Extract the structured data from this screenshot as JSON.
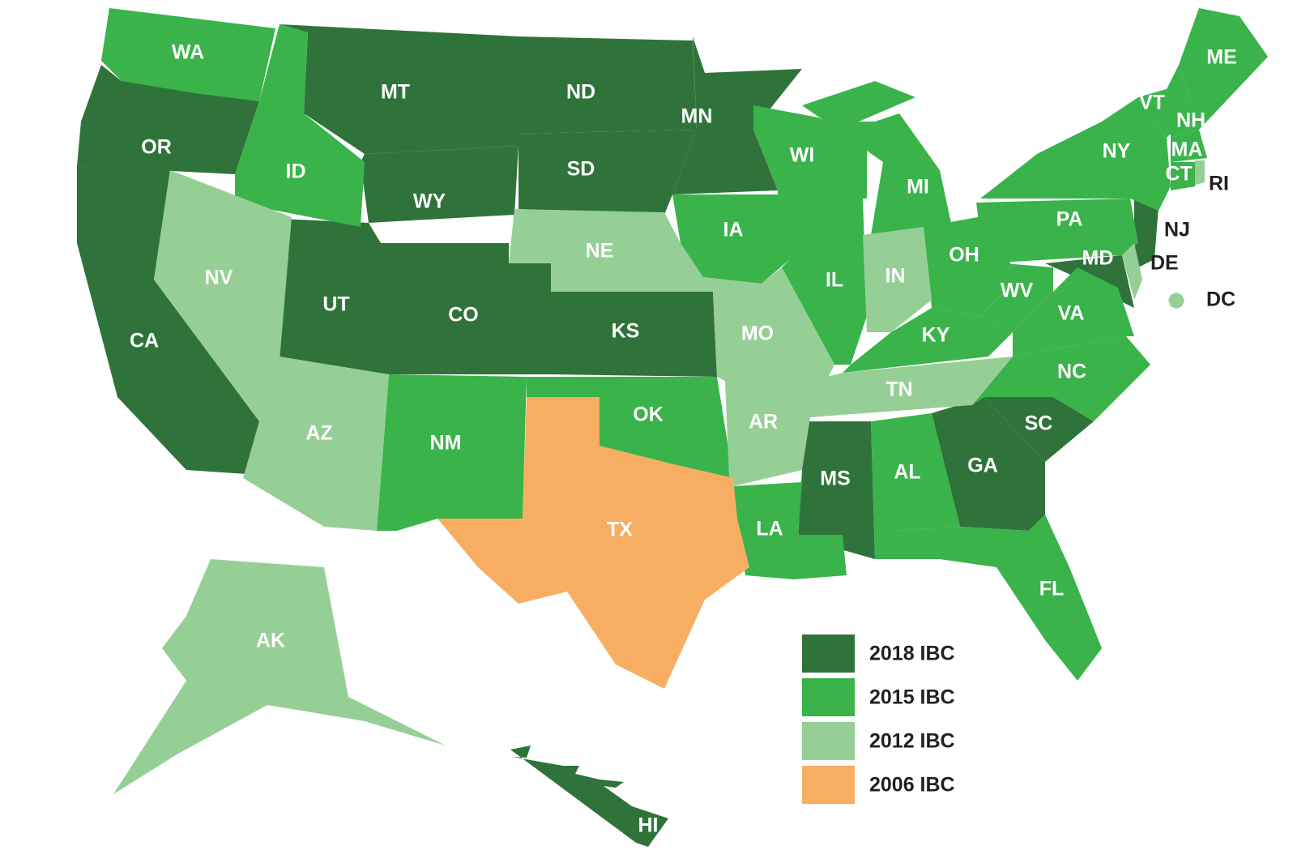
{
  "legend": [
    {
      "label": "2018 IBC",
      "color": "#2f733a",
      "states": [
        "MT",
        "ND",
        "MN",
        "SD",
        "WY",
        "UT",
        "CO",
        "KS",
        "OR",
        "CA",
        "MS",
        "GA",
        "SC",
        "NJ",
        "MD",
        "HI"
      ]
    },
    {
      "label": "2015 IBC",
      "color": "#39b34a",
      "states": [
        "WA",
        "ID",
        "NM",
        "OK",
        "IA",
        "IL",
        "WI",
        "MI",
        "OH",
        "KY",
        "WV",
        "VA",
        "NC",
        "PA",
        "NY",
        "VT",
        "NH",
        "ME",
        "MA",
        "CT",
        "AL",
        "LA",
        "FL"
      ]
    },
    {
      "label": "2012 IBC",
      "color": "#96cf96",
      "states": [
        "NV",
        "AZ",
        "NE",
        "MO",
        "AR",
        "TN",
        "IN",
        "AK",
        "DE",
        "RI",
        "DC"
      ]
    },
    {
      "label": "2006 IBC",
      "color": "#f7ae62",
      "states": [
        "TX"
      ]
    }
  ]
}
